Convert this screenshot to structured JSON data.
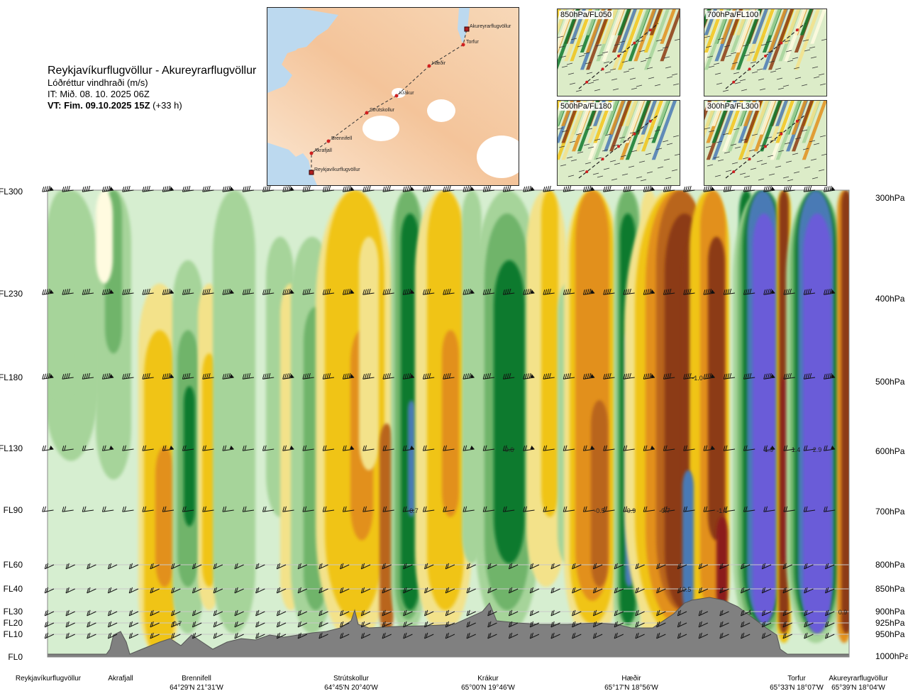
{
  "header": {
    "title": "Reykjavíkurflugvöllur - Akureyrarflugvöllur",
    "subtitle": "Lóðréttur vindhraði (m/s)",
    "it": "IT: Mið. 08. 10. 2025 06Z",
    "vt_bold": "VT: Fim. 09.10.2025 15Z",
    "vt_rest": " (+33 h)"
  },
  "map": {
    "stations": [
      "Akureyrarflugvöllur",
      "Torfur",
      "Hæðir",
      "Krákur",
      "Strútskollur",
      "Brennifell",
      "Akrafjall",
      "Reykjavíkurflugvöllur"
    ]
  },
  "panels": [
    {
      "label": "850hPa/FL050"
    },
    {
      "label": "700hPa/FL100"
    },
    {
      "label": "500hPa/FL180"
    },
    {
      "label": "300hPa/FL300"
    }
  ],
  "chart_data": {
    "type": "heatmap",
    "title": "Lóðréttur vindhraði (m/s)",
    "levels": [
      {
        "fl": "FL300",
        "hpa": "300hPa"
      },
      {
        "fl": "FL230",
        "hpa": "400hPa"
      },
      {
        "fl": "FL180",
        "hpa": "500hPa"
      },
      {
        "fl": "FL130",
        "hpa": "600hPa"
      },
      {
        "fl": "FL90",
        "hpa": "700hPa"
      },
      {
        "fl": "FL60",
        "hpa": "800hPa"
      },
      {
        "fl": "FL40",
        "hpa": "850hPa"
      },
      {
        "fl": "FL30",
        "hpa": "900hPa"
      },
      {
        "fl": "FL20",
        "hpa": "925hPa"
      },
      {
        "fl": "FL10",
        "hpa": "950hPa"
      },
      {
        "fl": "FL0",
        "hpa": "1000hPa"
      }
    ],
    "locations": [
      {
        "name": "Reykjavíkurflugvöllur",
        "coord": ""
      },
      {
        "name": "Akrafjall",
        "coord": ""
      },
      {
        "name": "Brennifell",
        "coord": "64°29'N 21°31'W"
      },
      {
        "name": "Strútskollur",
        "coord": "64°45'N 20°40'W"
      },
      {
        "name": "Krákur",
        "coord": "65°00'N 19°46'W"
      },
      {
        "name": "Hæðir",
        "coord": "65°17'N 18°56'W"
      },
      {
        "name": "Torfur",
        "coord": "65°33'N 18°07'W"
      },
      {
        "name": "Akureyrarflugvöllur",
        "coord": "65°39'N 18°04'W"
      }
    ],
    "annotations": [
      {
        "text": "-1.0",
        "level": "500hPa",
        "near": "Hæðir"
      },
      {
        "text": "0.6",
        "level": "600hPa",
        "near": "Krákur"
      },
      {
        "text": "1.9",
        "level": "600hPa",
        "near": "Torfur"
      },
      {
        "text": "1.4",
        "level": "600hPa",
        "near": "Torfur"
      },
      {
        "text": "2.9",
        "level": "600hPa",
        "near": "Akureyrarflugvöllur"
      },
      {
        "text": "-0.7",
        "level": "700hPa",
        "near": "Strútskollur"
      },
      {
        "text": "-0.5",
        "level": "700hPa",
        "near": "Krákur"
      },
      {
        "text": "0.9",
        "level": "700hPa",
        "near": "Hæðir"
      },
      {
        "text": "-0.7",
        "level": "700hPa",
        "near": "Hæðir"
      },
      {
        "text": "-1.1",
        "level": "700hPa",
        "near": "Torfur"
      },
      {
        "text": "0.5",
        "level": "850hPa",
        "near": "Hæðir"
      },
      {
        "text": "-1",
        "level": "900hPa",
        "near": "Torfur"
      },
      {
        "text": "0.9",
        "level": "900hPa",
        "near": "Akureyrarflugvöllur"
      },
      {
        "text": "0.7",
        "level": "925hPa",
        "near": "Brennifell"
      }
    ],
    "colors": {
      "strong_down_2": "#6a5bd8",
      "strong_down_1": "#4a7ab5",
      "down_3": "#117a2e",
      "down_2": "#6fb46b",
      "down_1": "#a6d49a",
      "down_0": "#d6eed0",
      "neutral": "#fffbe0",
      "up_1": "#f3e28a",
      "up_2": "#f0c419",
      "up_3": "#e2901c",
      "up_4": "#b9651c",
      "up_5": "#8c3b12",
      "up_6": "#8b1a1a",
      "terrain": "#808080"
    }
  }
}
